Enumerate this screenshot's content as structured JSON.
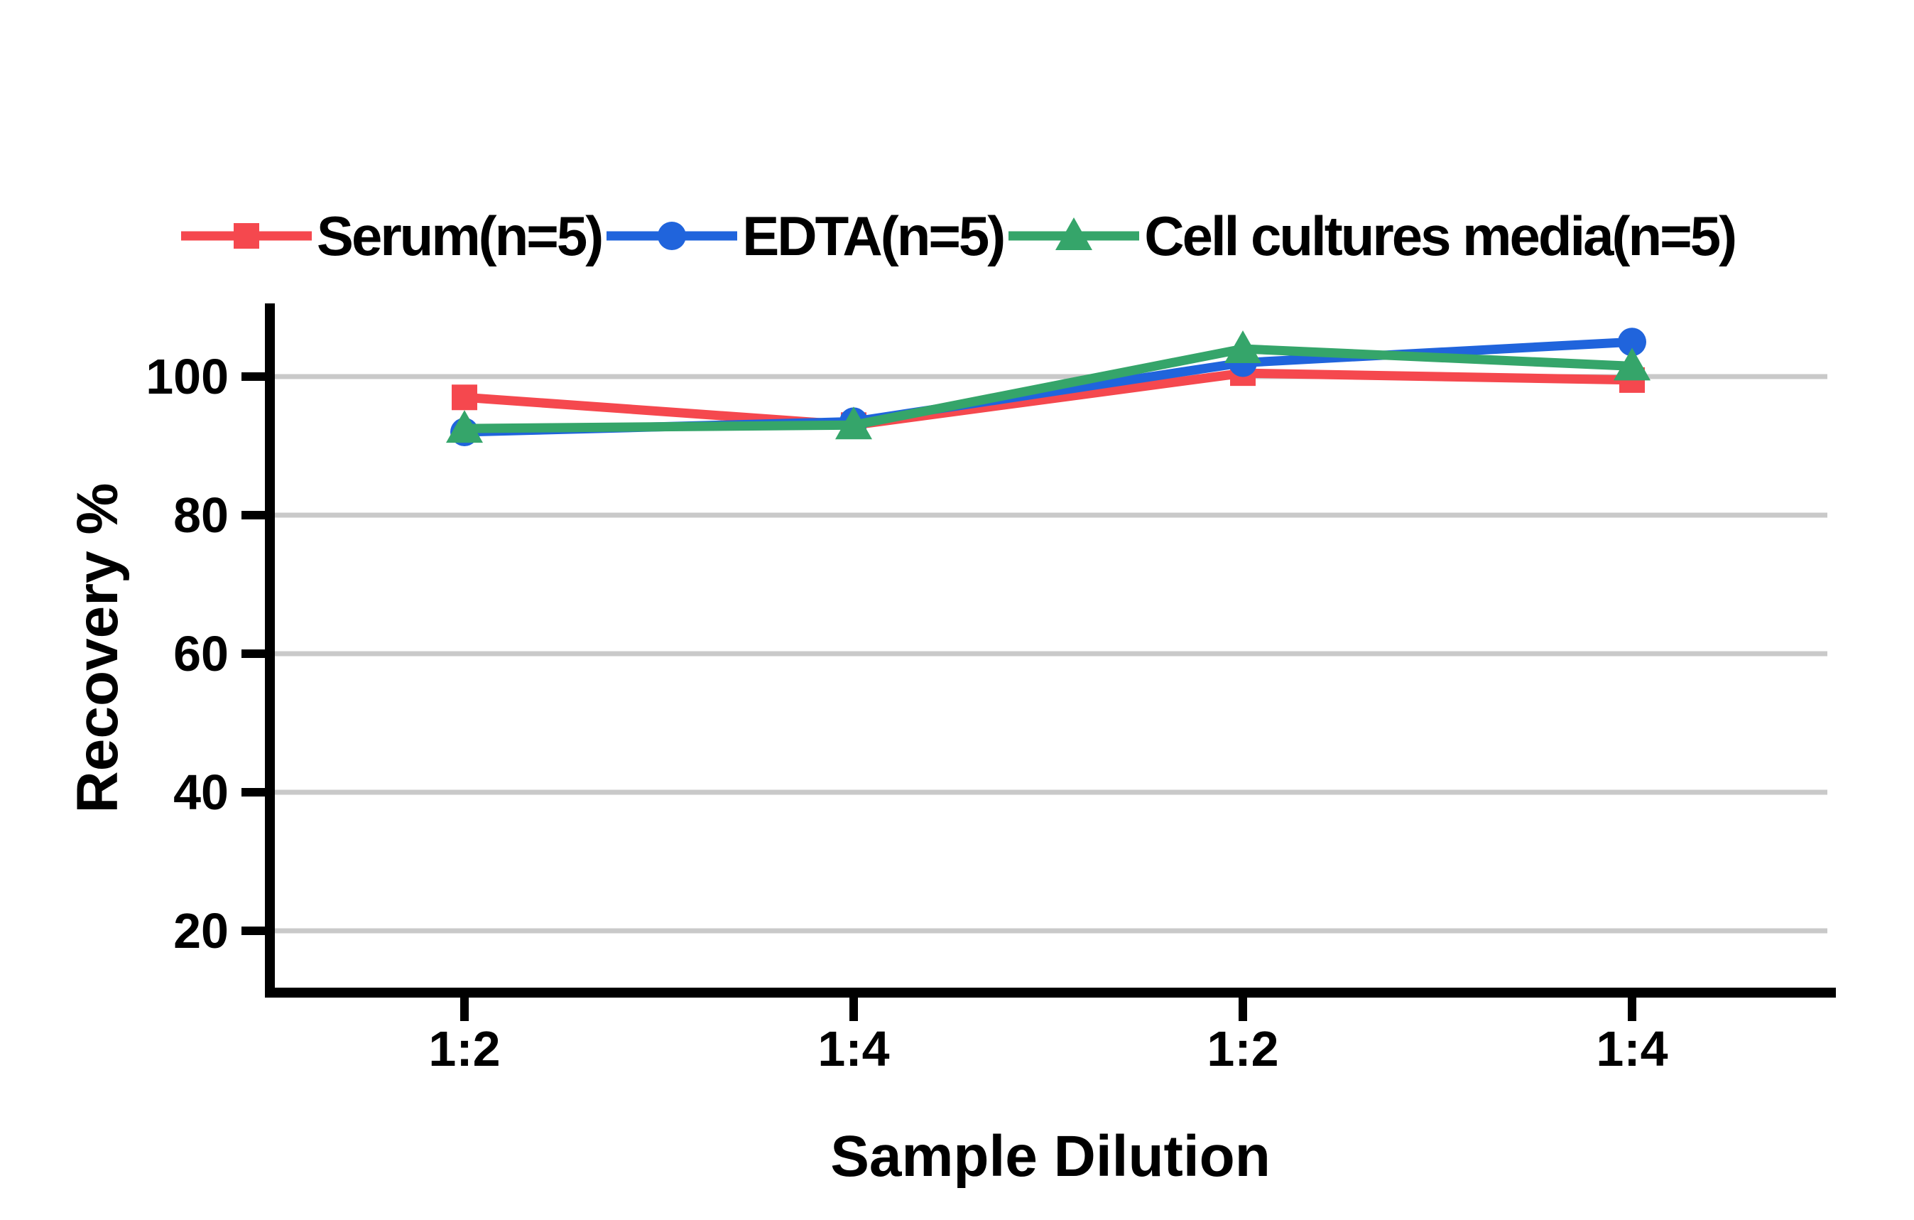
{
  "chart_data": {
    "type": "line",
    "title": "",
    "xlabel": "Sample Dilution",
    "ylabel": "Recovery %",
    "categories": [
      "1:2",
      "1:4",
      "1:2",
      "1:4"
    ],
    "y_ticks": [
      20,
      40,
      60,
      80,
      100
    ],
    "ylim": [
      10,
      110
    ],
    "grid": "horizontal gridlines at each y tick",
    "legend_position": "top",
    "series": [
      {
        "name": "Serum(n=5)",
        "marker": "square",
        "color": "#F5484E",
        "values": [
          97,
          93,
          100.5,
          99.5
        ]
      },
      {
        "name": "EDTA(n=5)",
        "marker": "circle",
        "color": "#2064DC",
        "values": [
          92,
          93.5,
          102,
          105
        ]
      },
      {
        "name": "Cell cultures media(n=5)",
        "marker": "triangle",
        "color": "#35A56A",
        "values": [
          92.5,
          93,
          104,
          101.5
        ]
      }
    ],
    "colors": {
      "grid": "#C9C9C9",
      "axis": "#000000",
      "text": "#000000",
      "background": "#FFFFFF"
    }
  }
}
